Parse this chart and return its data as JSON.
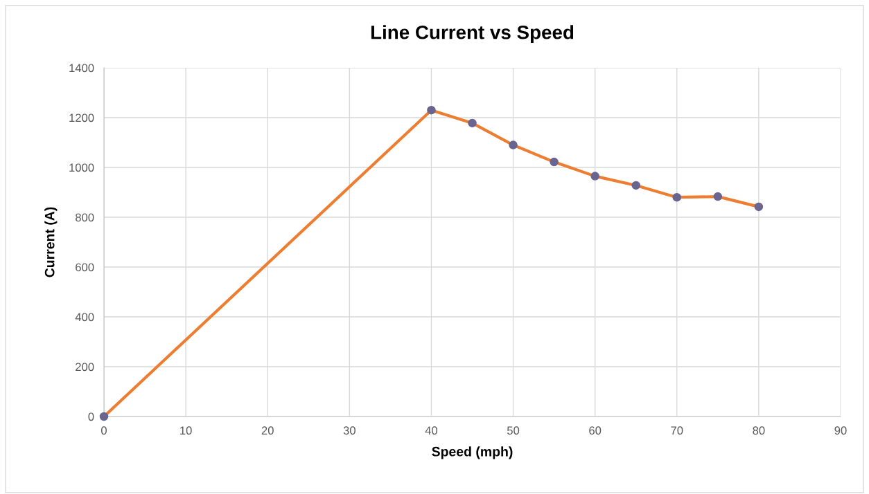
{
  "chart_data": {
    "type": "line",
    "title": "Line Current vs Speed",
    "xlabel": "Speed (mph)",
    "ylabel": "Current (A)",
    "x": [
      0,
      40,
      45,
      50,
      55,
      60,
      65,
      70,
      75,
      80
    ],
    "series": [
      {
        "color": "#ed7d31",
        "values": [
          0,
          1230,
          1178,
          1090,
          1022,
          965,
          928,
          880,
          883,
          842
        ]
      }
    ],
    "xlim": [
      0,
      90
    ],
    "xticks": [
      0,
      10,
      20,
      30,
      40,
      50,
      60,
      70,
      80,
      90
    ],
    "ylim": [
      0,
      1400
    ],
    "yticks": [
      0,
      200,
      400,
      600,
      800,
      1000,
      1200,
      1400
    ],
    "grid": true,
    "marker": "circle",
    "line_style": "solid",
    "legend": false
  }
}
